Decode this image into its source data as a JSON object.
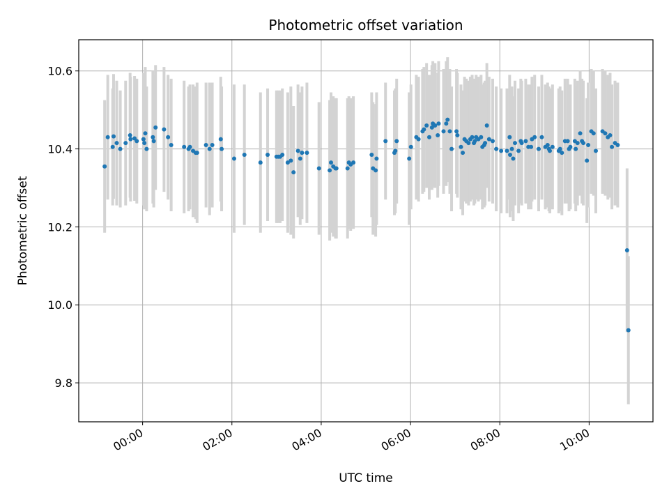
{
  "chart_data": {
    "type": "scatter",
    "title": "Photometric offset variation",
    "xlabel": "UTC time",
    "ylabel": "Photometric offset",
    "xlim": [
      -1.43,
      11.43
    ],
    "ylim": [
      9.7,
      10.68
    ],
    "x_ticks": [
      {
        "value": 0,
        "label": "00:00"
      },
      {
        "value": 2,
        "label": "02:00"
      },
      {
        "value": 4,
        "label": "04:00"
      },
      {
        "value": 6,
        "label": "06:00"
      },
      {
        "value": 8,
        "label": "08:00"
      },
      {
        "value": 10,
        "label": "10:00"
      }
    ],
    "y_ticks": [
      {
        "value": 9.8,
        "label": "9.8"
      },
      {
        "value": 10.0,
        "label": "10.0"
      },
      {
        "value": 10.2,
        "label": "10.2"
      },
      {
        "value": 10.4,
        "label": "10.4"
      },
      {
        "value": 10.6,
        "label": "10.6"
      }
    ],
    "grid": true,
    "colors": {
      "points": "#1f77b4",
      "error_bars": "#d3d3d3",
      "grid": "#b0b0b0"
    },
    "series": [
      {
        "x": [
          -0.85,
          -0.78,
          -0.67,
          -0.65,
          -0.58,
          -0.5,
          -0.38,
          -0.28,
          -0.27,
          -0.18,
          -0.13,
          0.02,
          0.04,
          0.06,
          0.09,
          0.23,
          0.25,
          0.29,
          0.48,
          0.57,
          0.64,
          0.93,
          1.03,
          1.06,
          1.13,
          1.19,
          1.22,
          1.42,
          1.5,
          1.56,
          1.75,
          1.77,
          2.05,
          2.28,
          2.64,
          2.8,
          3.0,
          3.04,
          3.08,
          3.13,
          3.25,
          3.32,
          3.38,
          3.48,
          3.53,
          3.57,
          3.68,
          3.95,
          4.19,
          4.22,
          4.27,
          4.32,
          4.34,
          4.59,
          4.62,
          4.66,
          4.72,
          5.13,
          5.16,
          5.22,
          5.24,
          5.44,
          5.64,
          5.66,
          5.69,
          5.97,
          6.01,
          6.13,
          6.18,
          6.27,
          6.3,
          6.36,
          6.42,
          6.48,
          6.5,
          6.54,
          6.55,
          6.61,
          6.63,
          6.74,
          6.8,
          6.83,
          6.88,
          6.92,
          7.03,
          7.05,
          7.13,
          7.17,
          7.21,
          7.25,
          7.3,
          7.34,
          7.38,
          7.42,
          7.44,
          7.47,
          7.52,
          7.58,
          7.61,
          7.65,
          7.67,
          7.71,
          7.76,
          7.84,
          7.92,
          8.03,
          8.16,
          8.22,
          8.23,
          8.27,
          8.3,
          8.34,
          8.42,
          8.47,
          8.49,
          8.58,
          8.64,
          8.7,
          8.72,
          8.78,
          8.87,
          8.94,
          9.02,
          9.07,
          9.1,
          9.12,
          9.18,
          9.32,
          9.35,
          9.39,
          9.46,
          9.52,
          9.55,
          9.58,
          9.68,
          9.7,
          9.74,
          9.8,
          9.84,
          9.87,
          9.95,
          9.98,
          10.05,
          10.1,
          10.15,
          10.3,
          10.36,
          10.42,
          10.47,
          10.51,
          10.58,
          10.64,
          10.85,
          10.88
        ],
        "y": [
          10.355,
          10.43,
          10.405,
          10.432,
          10.415,
          10.4,
          10.415,
          10.435,
          10.425,
          10.427,
          10.42,
          10.425,
          10.415,
          10.44,
          10.4,
          10.43,
          10.42,
          10.455,
          10.45,
          10.43,
          10.41,
          10.405,
          10.4,
          10.405,
          10.395,
          10.39,
          10.39,
          10.41,
          10.4,
          10.41,
          10.425,
          10.4,
          10.375,
          10.385,
          10.365,
          10.385,
          10.38,
          10.38,
          10.38,
          10.385,
          10.365,
          10.37,
          10.34,
          10.395,
          10.375,
          10.39,
          10.39,
          10.35,
          10.345,
          10.365,
          10.355,
          10.35,
          10.35,
          10.35,
          10.365,
          10.36,
          10.365,
          10.385,
          10.35,
          10.345,
          10.375,
          10.42,
          10.39,
          10.395,
          10.42,
          10.375,
          10.405,
          10.43,
          10.425,
          10.445,
          10.45,
          10.46,
          10.43,
          10.455,
          10.465,
          10.46,
          10.46,
          10.435,
          10.465,
          10.445,
          10.465,
          10.475,
          10.445,
          10.4,
          10.445,
          10.435,
          10.405,
          10.39,
          10.425,
          10.42,
          10.415,
          10.425,
          10.43,
          10.415,
          10.42,
          10.43,
          10.425,
          10.43,
          10.405,
          10.41,
          10.415,
          10.46,
          10.425,
          10.42,
          10.4,
          10.395,
          10.395,
          10.43,
          10.385,
          10.4,
          10.375,
          10.415,
          10.395,
          10.42,
          10.415,
          10.42,
          10.405,
          10.405,
          10.425,
          10.43,
          10.4,
          10.43,
          10.405,
          10.41,
          10.4,
          10.395,
          10.405,
          10.395,
          10.4,
          10.39,
          10.42,
          10.42,
          10.4,
          10.405,
          10.42,
          10.4,
          10.415,
          10.44,
          10.42,
          10.415,
          10.37,
          10.41,
          10.445,
          10.44,
          10.395,
          10.445,
          10.44,
          10.43,
          10.435,
          10.405,
          10.415,
          10.41,
          10.14,
          9.935
        ],
        "y_err": [
          0.17,
          0.16,
          0.15,
          0.16,
          0.16,
          0.15,
          0.16,
          0.16,
          0.16,
          0.16,
          0.16,
          0.17,
          0.17,
          0.17,
          0.16,
          0.17,
          0.17,
          0.16,
          0.16,
          0.16,
          0.17,
          0.17,
          0.16,
          0.16,
          0.17,
          0.17,
          0.18,
          0.16,
          0.17,
          0.16,
          0.16,
          0.16,
          0.19,
          0.18,
          0.18,
          0.17,
          0.17,
          0.17,
          0.17,
          0.17,
          0.18,
          0.19,
          0.17,
          0.17,
          0.17,
          0.17,
          0.18,
          0.17,
          0.18,
          0.18,
          0.18,
          0.18,
          0.18,
          0.18,
          0.17,
          0.17,
          0.17,
          0.16,
          0.17,
          0.17,
          0.17,
          0.15,
          0.16,
          0.16,
          0.16,
          0.17,
          0.16,
          0.16,
          0.16,
          0.16,
          0.16,
          0.16,
          0.16,
          0.16,
          0.16,
          0.16,
          0.16,
          0.16,
          0.16,
          0.16,
          0.16,
          0.16,
          0.16,
          0.16,
          0.16,
          0.16,
          0.16,
          0.16,
          0.16,
          0.16,
          0.16,
          0.16,
          0.16,
          0.16,
          0.16,
          0.16,
          0.16,
          0.16,
          0.16,
          0.16,
          0.16,
          0.16,
          0.16,
          0.16,
          0.16,
          0.16,
          0.16,
          0.16,
          0.16,
          0.16,
          0.16,
          0.16,
          0.16,
          0.16,
          0.16,
          0.16,
          0.16,
          0.16,
          0.16,
          0.16,
          0.16,
          0.16,
          0.16,
          0.16,
          0.16,
          0.16,
          0.16,
          0.16,
          0.16,
          0.16,
          0.16,
          0.16,
          0.16,
          0.16,
          0.16,
          0.16,
          0.16,
          0.16,
          0.16,
          0.16,
          0.16,
          0.16,
          0.16,
          0.16,
          0.16,
          0.16,
          0.16,
          0.16,
          0.16,
          0.16,
          0.16,
          0.16,
          0.21,
          0.19
        ]
      }
    ]
  }
}
